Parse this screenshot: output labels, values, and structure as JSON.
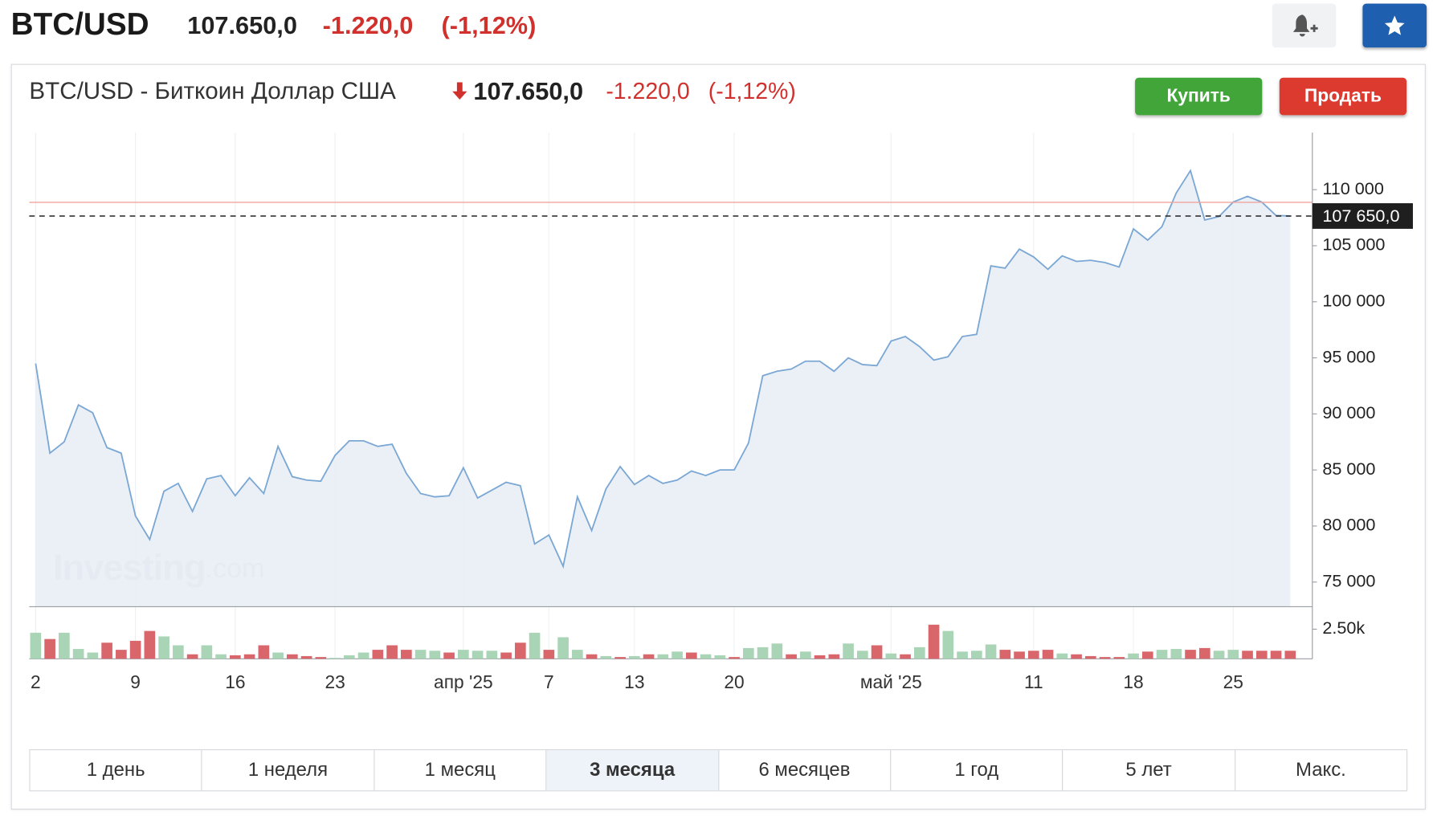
{
  "header": {
    "symbol": "BTC/USD",
    "price": "107.650,0",
    "change": "-1.220,0",
    "change_pct": "(-1,12%)"
  },
  "card": {
    "title": "BTC/USD - Биткоин Доллар США",
    "price": "107.650,0",
    "change": "-1.220,0",
    "change_pct": "(-1,12%)",
    "buy": "Купить",
    "sell": "Продать"
  },
  "chart_data": {
    "type": "area",
    "color": "#7aa7d4",
    "fill": "#e9eef6",
    "categories": [
      "2",
      null,
      null,
      null,
      null,
      null,
      null,
      "9",
      null,
      null,
      null,
      null,
      null,
      null,
      "16",
      null,
      null,
      null,
      null,
      null,
      null,
      "23",
      null,
      null,
      null,
      null,
      null,
      null,
      null,
      null,
      "апр '25",
      null,
      null,
      null,
      null,
      null,
      "7",
      null,
      null,
      null,
      null,
      null,
      "13",
      null,
      null,
      null,
      null,
      null,
      null,
      "20",
      null,
      null,
      null,
      null,
      null,
      null,
      null,
      null,
      null,
      null,
      "май '25",
      null,
      null,
      null,
      null,
      null,
      null,
      null,
      null,
      null,
      "11",
      null,
      null,
      null,
      null,
      null,
      null,
      "18",
      null,
      null,
      null,
      null,
      null,
      null,
      "25",
      null,
      null,
      null,
      null
    ],
    "values": [
      94500,
      86500,
      87500,
      90800,
      90100,
      87000,
      86500,
      80900,
      78800,
      83100,
      83800,
      81300,
      84200,
      84500,
      82700,
      84300,
      82900,
      87100,
      84400,
      84100,
      84000,
      86300,
      87600,
      87600,
      87100,
      87300,
      84700,
      82900,
      82600,
      82700,
      85200,
      82500,
      83200,
      83900,
      83600,
      78400,
      79200,
      76400,
      82600,
      79600,
      83300,
      85300,
      83700,
      84500,
      83800,
      84100,
      84900,
      84500,
      85000,
      85000,
      87400,
      93400,
      93800,
      94000,
      94700,
      94700,
      93800,
      95000,
      94400,
      94300,
      96500,
      96900,
      96000,
      94800,
      95100,
      96900,
      97100,
      103200,
      103000,
      104700,
      104000,
      102900,
      104100,
      103600,
      103700,
      103500,
      103100,
      106500,
      105500,
      106700,
      109700,
      111700,
      107300,
      107600,
      108900,
      109400,
      108900,
      107700,
      107650
    ],
    "ylim": [
      72800,
      115100
    ],
    "yticks": [
      {
        "value": 75000,
        "label": "75 000"
      },
      {
        "value": 80000,
        "label": "80 000"
      },
      {
        "value": 85000,
        "label": "85 000"
      },
      {
        "value": 90000,
        "label": "90 000"
      },
      {
        "value": 95000,
        "label": "95 000"
      },
      {
        "value": 100000,
        "label": "100 000"
      },
      {
        "value": 105000,
        "label": "105 000"
      },
      {
        "value": 110000,
        "label": "110 000"
      }
    ],
    "last_price": {
      "value": 107650,
      "label": "107 650,0"
    },
    "previous_close": 108870,
    "watermark": "Investing",
    "watermark_suffix": ".com",
    "volume": {
      "values": [
        2200,
        1670,
        2200,
        830,
        530,
        1360,
        760,
        1520,
        2350,
        1890,
        1140,
        380,
        1140,
        380,
        300,
        380,
        1140,
        530,
        380,
        230,
        150,
        80,
        300,
        530,
        760,
        1140,
        760,
        760,
        680,
        530,
        760,
        680,
        680,
        530,
        1360,
        2200,
        760,
        1820,
        760,
        380,
        230,
        150,
        230,
        380,
        380,
        610,
        530,
        380,
        300,
        150,
        910,
        980,
        1290,
        380,
        610,
        300,
        380,
        1290,
        680,
        1140,
        450,
        380,
        980,
        2880,
        2350,
        610,
        680,
        1210,
        760,
        610,
        680,
        760,
        450,
        380,
        230,
        150,
        150,
        450,
        610,
        760,
        830,
        760,
        910,
        680,
        760,
        680,
        680,
        680,
        680
      ],
      "colors": [
        "#a9d5b6",
        "#d9666b",
        "#a9d5b6",
        "#a9d5b6",
        "#a9d5b6",
        "#d9666b",
        "#d9666b",
        "#d9666b",
        "#d9666b",
        "#a9d5b6",
        "#a9d5b6",
        "#d9666b",
        "#a9d5b6",
        "#a9d5b6",
        "#d9666b",
        "#d9666b",
        "#d9666b",
        "#a9d5b6",
        "#d9666b",
        "#d9666b",
        "#d9666b",
        "#a9d5b6",
        "#a9d5b6",
        "#a9d5b6",
        "#d9666b",
        "#d9666b",
        "#d9666b",
        "#a9d5b6",
        "#a9d5b6",
        "#d9666b",
        "#a9d5b6",
        "#a9d5b6",
        "#a9d5b6",
        "#d9666b",
        "#d9666b",
        "#a9d5b6",
        "#d9666b",
        "#a9d5b6",
        "#a9d5b6",
        "#d9666b",
        "#a9d5b6",
        "#d9666b",
        "#a9d5b6",
        "#d9666b",
        "#a9d5b6",
        "#a9d5b6",
        "#d9666b",
        "#a9d5b6",
        "#a9d5b6",
        "#d9666b",
        "#a9d5b6",
        "#a9d5b6",
        "#a9d5b6",
        "#d9666b",
        "#a9d5b6",
        "#d9666b",
        "#d9666b",
        "#a9d5b6",
        "#a9d5b6",
        "#d9666b",
        "#a9d5b6",
        "#d9666b",
        "#a9d5b6",
        "#d9666b",
        "#a9d5b6",
        "#a9d5b6",
        "#a9d5b6",
        "#a9d5b6",
        "#d9666b",
        "#d9666b",
        "#d9666b",
        "#d9666b",
        "#a9d5b6",
        "#d9666b",
        "#d9666b",
        "#d9666b",
        "#d9666b",
        "#a9d5b6",
        "#d9666b",
        "#a9d5b6",
        "#a9d5b6",
        "#d9666b",
        "#d9666b",
        "#a9d5b6",
        "#a9d5b6",
        "#d9666b",
        "#d9666b",
        "#d9666b",
        "#d9666b"
      ],
      "ylim": [
        0,
        4240
      ],
      "yticks": [
        {
          "value": 2500,
          "label": "2.50k"
        }
      ]
    }
  },
  "ranges": {
    "options": [
      "1 день",
      "1 неделя",
      "1 месяц",
      "3 месяца",
      "6 месяцев",
      "1 год",
      "5 лет",
      "Макс."
    ],
    "active": 3
  }
}
